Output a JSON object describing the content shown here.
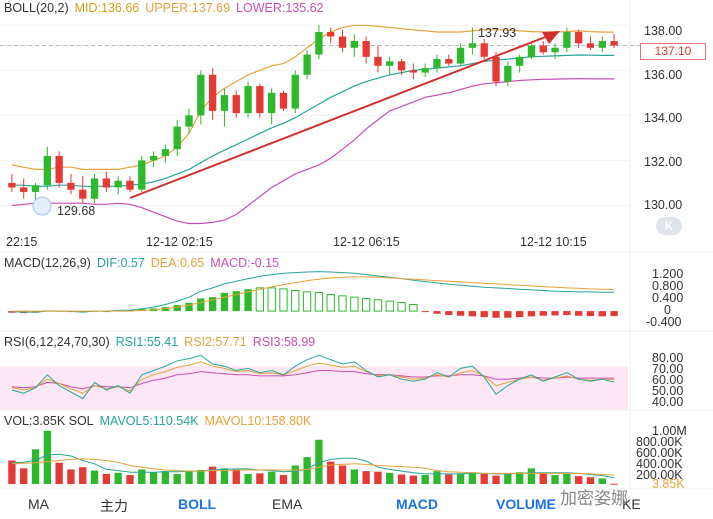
{
  "boll_header": {
    "name": "BOLL(20,2)",
    "mid": "MID:136.66",
    "upper": "UPPER:137.69",
    "lower": "LOWER:135.62",
    "colors": {
      "name": "#333333",
      "mid": "#d4a017",
      "upper": "#e6a23c",
      "lower": "#c94fb3"
    }
  },
  "macd_header": {
    "name": "MACD(12,26,9)",
    "dif": "DIF:0.57",
    "dea": "DEA:0.65",
    "macd": "MACD:-0.15"
  },
  "rsi_header": {
    "name": "RSI(6,12,24,70,30)",
    "rsi1": "RSI1:55.41",
    "rsi2": "RSI2:57.71",
    "rsi3": "RSI3:58.99"
  },
  "vol_header": {
    "name": "VOL:3.85K SOL",
    "mavol5": "MAVOL5:110.54K",
    "mavol10": "MAVOL10:158.80K"
  },
  "price_axis": [
    "138.00",
    "136.00",
    "134.00",
    "132.00",
    "130.00"
  ],
  "current_price": "137.10",
  "time_axis": [
    "22:15",
    "12-12 02:15",
    "12-12 06:15",
    "12-12 10:15"
  ],
  "macd_axis": [
    "1.200",
    "0.800",
    "0.400",
    "0",
    "-0.400"
  ],
  "rsi_axis": [
    "80.00",
    "70.00",
    "60.00",
    "50.00",
    "40.00"
  ],
  "vol_axis": [
    "1.00M",
    "800.00K",
    "600.00K",
    "400.00K",
    "200.00K",
    "3.85K"
  ],
  "annotations": {
    "high": "137.93",
    "low": "129.68"
  },
  "tabs": [
    "MA",
    "主力",
    "BOLL",
    "EMA",
    "MACD",
    "VOLUME",
    "KE"
  ],
  "active_tabs": [
    "BOLL",
    "MACD",
    "VOLUME"
  ],
  "watermark": "加密姿娜",
  "k_button": "K",
  "colors": {
    "up": "#2eb82e",
    "down": "#e53935",
    "mid": "#26a69a",
    "upper": "#e6a23c",
    "lower": "#c94fb3",
    "arrow": "#d32f2f",
    "active_tab": "#1a73e8"
  },
  "chart_data": {
    "type": "candlestick",
    "candles": [
      {
        "o": 131.0,
        "h": 131.4,
        "l": 130.6,
        "c": 130.8
      },
      {
        "o": 130.8,
        "h": 131.2,
        "l": 130.3,
        "c": 130.6
      },
      {
        "o": 130.6,
        "h": 131.0,
        "l": 130.2,
        "c": 130.9
      },
      {
        "o": 130.9,
        "h": 132.6,
        "l": 130.7,
        "c": 132.2
      },
      {
        "o": 132.2,
        "h": 132.4,
        "l": 130.8,
        "c": 131.0
      },
      {
        "o": 131.0,
        "h": 131.4,
        "l": 130.5,
        "c": 130.7
      },
      {
        "o": 130.7,
        "h": 131.3,
        "l": 130.1,
        "c": 130.3
      },
      {
        "o": 130.3,
        "h": 131.4,
        "l": 130.1,
        "c": 131.2
      },
      {
        "o": 131.2,
        "h": 131.5,
        "l": 130.6,
        "c": 130.8
      },
      {
        "o": 130.8,
        "h": 131.3,
        "l": 130.5,
        "c": 131.1
      },
      {
        "o": 131.1,
        "h": 131.3,
        "l": 130.6,
        "c": 130.7
      },
      {
        "o": 130.7,
        "h": 132.2,
        "l": 130.6,
        "c": 132.0
      },
      {
        "o": 132.0,
        "h": 132.4,
        "l": 131.7,
        "c": 132.2
      },
      {
        "o": 132.2,
        "h": 132.7,
        "l": 131.9,
        "c": 132.5
      },
      {
        "o": 132.5,
        "h": 133.8,
        "l": 132.2,
        "c": 133.5
      },
      {
        "o": 133.5,
        "h": 134.3,
        "l": 133.2,
        "c": 134.0
      },
      {
        "o": 134.0,
        "h": 136.0,
        "l": 133.6,
        "c": 135.8
      },
      {
        "o": 135.8,
        "h": 136.1,
        "l": 133.8,
        "c": 134.2
      },
      {
        "o": 134.2,
        "h": 135.2,
        "l": 133.5,
        "c": 134.9
      },
      {
        "o": 134.9,
        "h": 135.1,
        "l": 133.9,
        "c": 134.1
      },
      {
        "o": 134.1,
        "h": 135.5,
        "l": 133.9,
        "c": 135.3
      },
      {
        "o": 135.3,
        "h": 135.4,
        "l": 133.9,
        "c": 134.1
      },
      {
        "o": 134.1,
        "h": 135.2,
        "l": 133.6,
        "c": 135.0
      },
      {
        "o": 135.0,
        "h": 135.1,
        "l": 134.2,
        "c": 134.3
      },
      {
        "o": 134.3,
        "h": 136.0,
        "l": 134.1,
        "c": 135.8
      },
      {
        "o": 135.8,
        "h": 136.9,
        "l": 135.6,
        "c": 136.7
      },
      {
        "o": 136.7,
        "h": 138.0,
        "l": 136.5,
        "c": 137.7
      },
      {
        "o": 137.7,
        "h": 137.9,
        "l": 137.2,
        "c": 137.5
      },
      {
        "o": 137.5,
        "h": 137.8,
        "l": 136.8,
        "c": 137.0
      },
      {
        "o": 137.0,
        "h": 137.6,
        "l": 136.6,
        "c": 137.3
      },
      {
        "o": 137.3,
        "h": 137.5,
        "l": 136.3,
        "c": 136.6
      },
      {
        "o": 136.6,
        "h": 137.1,
        "l": 135.9,
        "c": 136.2
      },
      {
        "o": 136.2,
        "h": 136.6,
        "l": 135.8,
        "c": 136.4
      },
      {
        "o": 136.4,
        "h": 136.5,
        "l": 135.8,
        "c": 136.0
      },
      {
        "o": 136.0,
        "h": 136.3,
        "l": 135.6,
        "c": 135.9
      },
      {
        "o": 135.9,
        "h": 136.3,
        "l": 135.7,
        "c": 136.1
      },
      {
        "o": 136.1,
        "h": 136.7,
        "l": 135.9,
        "c": 136.5
      },
      {
        "o": 136.5,
        "h": 136.7,
        "l": 136.2,
        "c": 136.3
      },
      {
        "o": 136.3,
        "h": 137.2,
        "l": 136.2,
        "c": 137.0
      },
      {
        "o": 137.0,
        "h": 137.9,
        "l": 136.7,
        "c": 137.2
      },
      {
        "o": 137.2,
        "h": 137.4,
        "l": 136.5,
        "c": 136.6
      },
      {
        "o": 136.6,
        "h": 136.8,
        "l": 135.3,
        "c": 135.5
      },
      {
        "o": 135.5,
        "h": 136.4,
        "l": 135.3,
        "c": 136.2
      },
      {
        "o": 136.2,
        "h": 136.7,
        "l": 135.9,
        "c": 136.6
      },
      {
        "o": 136.6,
        "h": 137.2,
        "l": 136.5,
        "c": 137.1
      },
      {
        "o": 137.1,
        "h": 137.3,
        "l": 136.7,
        "c": 136.8
      },
      {
        "o": 136.8,
        "h": 137.2,
        "l": 136.5,
        "c": 137.0
      },
      {
        "o": 137.0,
        "h": 137.9,
        "l": 136.8,
        "c": 137.7
      },
      {
        "o": 137.7,
        "h": 137.8,
        "l": 137.0,
        "c": 137.2
      },
      {
        "o": 137.2,
        "h": 137.5,
        "l": 136.9,
        "c": 137.0
      },
      {
        "o": 137.0,
        "h": 137.5,
        "l": 136.8,
        "c": 137.3
      },
      {
        "o": 137.3,
        "h": 137.6,
        "l": 137.0,
        "c": 137.1
      }
    ],
    "boll_upper": [
      131.8,
      131.7,
      131.6,
      131.6,
      131.7,
      131.7,
      131.6,
      131.6,
      131.6,
      131.6,
      131.7,
      131.8,
      132.0,
      132.2,
      132.6,
      133.2,
      134.2,
      134.8,
      135.2,
      135.5,
      135.8,
      136.0,
      136.2,
      136.3,
      136.6,
      137.0,
      137.4,
      137.7,
      137.9,
      138.0,
      138.0,
      137.95,
      137.9,
      137.85,
      137.8,
      137.75,
      137.7,
      137.7,
      137.7,
      137.75,
      137.8,
      137.8,
      137.78,
      137.75,
      137.72,
      137.7,
      137.7,
      137.72,
      137.75,
      137.72,
      137.7,
      137.69
    ],
    "boll_mid": [
      130.9,
      130.9,
      130.85,
      130.85,
      130.9,
      130.9,
      130.85,
      130.85,
      130.85,
      130.85,
      130.9,
      130.95,
      131.05,
      131.2,
      131.4,
      131.6,
      131.9,
      132.2,
      132.45,
      132.7,
      132.95,
      133.2,
      133.45,
      133.65,
      133.9,
      134.2,
      134.5,
      134.8,
      135.05,
      135.3,
      135.5,
      135.65,
      135.8,
      135.9,
      136.0,
      136.05,
      136.1,
      136.15,
      136.2,
      136.3,
      136.4,
      136.45,
      136.5,
      136.55,
      136.6,
      136.62,
      136.64,
      136.66,
      136.68,
      136.67,
      136.66,
      136.66
    ],
    "boll_lower": [
      130.0,
      130.05,
      130.1,
      130.1,
      130.1,
      130.1,
      130.1,
      130.05,
      130.05,
      130.1,
      130.05,
      129.9,
      129.7,
      129.5,
      129.3,
      129.2,
      129.2,
      129.25,
      129.35,
      129.6,
      130.0,
      130.4,
      130.8,
      131.1,
      131.4,
      131.6,
      131.8,
      132.1,
      132.5,
      132.9,
      133.4,
      133.8,
      134.2,
      134.4,
      134.6,
      134.8,
      134.9,
      135.0,
      135.15,
      135.3,
      135.4,
      135.45,
      135.5,
      135.55,
      135.58,
      135.6,
      135.61,
      135.62,
      135.63,
      135.62,
      135.62,
      135.62
    ],
    "macd_hist": [
      -0.05,
      -0.06,
      -0.05,
      0.02,
      0.01,
      -0.02,
      -0.04,
      0.01,
      0.0,
      0.02,
      0.03,
      0.06,
      0.08,
      0.12,
      0.18,
      0.25,
      0.38,
      0.42,
      0.55,
      0.6,
      0.66,
      0.7,
      0.7,
      0.67,
      0.62,
      0.58,
      0.56,
      0.5,
      0.46,
      0.42,
      0.38,
      0.34,
      0.3,
      0.26,
      0.2,
      -0.02,
      -0.08,
      -0.12,
      -0.14,
      -0.16,
      -0.18,
      -0.2,
      -0.2,
      -0.18,
      -0.16,
      -0.14,
      -0.13,
      -0.12,
      -0.14,
      -0.15,
      -0.16,
      -0.15
    ],
    "macd_dif": [
      -0.02,
      -0.03,
      -0.03,
      0.0,
      0.0,
      -0.01,
      -0.03,
      0.0,
      0.0,
      0.02,
      0.03,
      0.07,
      0.12,
      0.2,
      0.3,
      0.42,
      0.6,
      0.7,
      0.82,
      0.9,
      0.98,
      1.05,
      1.1,
      1.14,
      1.16,
      1.18,
      1.19,
      1.18,
      1.16,
      1.14,
      1.1,
      1.06,
      1.02,
      0.98,
      0.93,
      0.89,
      0.85,
      0.81,
      0.78,
      0.75,
      0.72,
      0.7,
      0.68,
      0.66,
      0.64,
      0.62,
      0.6,
      0.59,
      0.58,
      0.58,
      0.57,
      0.57
    ],
    "macd_dea": [
      0.0,
      0.0,
      0.0,
      0.0,
      0.0,
      0.0,
      0.0,
      0.0,
      0.0,
      0.0,
      0.0,
      0.02,
      0.04,
      0.07,
      0.12,
      0.18,
      0.26,
      0.34,
      0.42,
      0.5,
      0.58,
      0.66,
      0.73,
      0.8,
      0.86,
      0.92,
      0.96,
      1.0,
      1.02,
      1.03,
      1.03,
      1.02,
      1.0,
      0.98,
      0.96,
      0.94,
      0.92,
      0.9,
      0.88,
      0.86,
      0.84,
      0.82,
      0.8,
      0.78,
      0.76,
      0.74,
      0.72,
      0.7,
      0.69,
      0.67,
      0.66,
      0.65
    ],
    "rsi1": [
      48,
      45,
      50,
      62,
      52,
      46,
      40,
      55,
      48,
      52,
      45,
      62,
      66,
      70,
      75,
      77,
      80,
      72,
      70,
      66,
      68,
      64,
      66,
      62,
      70,
      76,
      80,
      76,
      72,
      74,
      66,
      60,
      62,
      58,
      56,
      58,
      64,
      60,
      68,
      70,
      60,
      44,
      52,
      58,
      62,
      56,
      60,
      64,
      58,
      56,
      58,
      55.41
    ],
    "rsi2": [
      50,
      48,
      50,
      58,
      54,
      49,
      45,
      52,
      49,
      51,
      47,
      58,
      62,
      65,
      69,
      71,
      74,
      70,
      68,
      65,
      66,
      63,
      64,
      62,
      66,
      70,
      73,
      71,
      69,
      70,
      65,
      61,
      62,
      60,
      58,
      59,
      62,
      60,
      64,
      66,
      61,
      52,
      55,
      58,
      60,
      57,
      59,
      61,
      58,
      57,
      58,
      57.71
    ],
    "rsi3": [
      51,
      50,
      51,
      55,
      54,
      51,
      49,
      52,
      51,
      51,
      50,
      54,
      57,
      59,
      62,
      63,
      65,
      64,
      63,
      62,
      62,
      61,
      61,
      61,
      62,
      64,
      66,
      66,
      65,
      65,
      63,
      62,
      62,
      61,
      60,
      60,
      61,
      61,
      62,
      62,
      61,
      58,
      58,
      59,
      60,
      59,
      59,
      60,
      59,
      59,
      59,
      58.99
    ],
    "volume": [
      420,
      280,
      620,
      950,
      380,
      260,
      300,
      240,
      180,
      200,
      160,
      260,
      210,
      230,
      180,
      240,
      250,
      310,
      280,
      260,
      180,
      190,
      220,
      160,
      330,
      480,
      790,
      400,
      330,
      260,
      230,
      220,
      200,
      170,
      150,
      160,
      230,
      170,
      190,
      210,
      180,
      150,
      190,
      210,
      280,
      200,
      160,
      180,
      140,
      120,
      100,
      4
    ],
    "mavol5": [
      380,
      390,
      420,
      520,
      530,
      500,
      420,
      360,
      260,
      240,
      210,
      210,
      210,
      220,
      220,
      230,
      230,
      250,
      260,
      270,
      270,
      250,
      240,
      220,
      230,
      270,
      380,
      440,
      460,
      460,
      410,
      300,
      260,
      230,
      200,
      180,
      180,
      180,
      180,
      190,
      190,
      180,
      180,
      190,
      200,
      200,
      200,
      200,
      190,
      170,
      150,
      110.54
    ],
    "mavol10": [
      360,
      370,
      380,
      400,
      420,
      440,
      450,
      440,
      420,
      390,
      330,
      300,
      270,
      250,
      240,
      230,
      230,
      240,
      240,
      250,
      250,
      250,
      250,
      250,
      250,
      260,
      300,
      340,
      350,
      360,
      350,
      330,
      320,
      310,
      300,
      280,
      240,
      220,
      210,
      200,
      190,
      190,
      190,
      190,
      190,
      190,
      190,
      190,
      190,
      180,
      170,
      158.8
    ],
    "price_ylim": [
      129.0,
      138.5
    ],
    "macd_ylim": [
      -0.45,
      1.3
    ],
    "rsi_ylim": [
      35,
      85
    ],
    "vol_ylim": [
      0,
      1000
    ]
  }
}
